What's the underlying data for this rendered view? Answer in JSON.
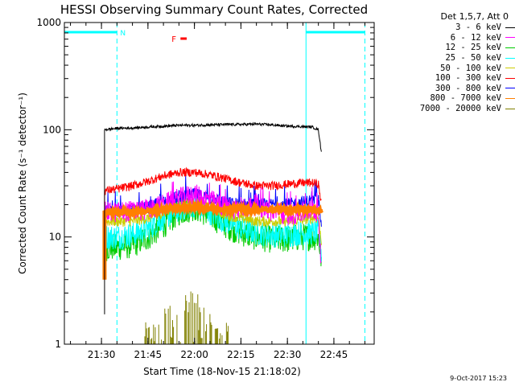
{
  "chart_data": {
    "type": "line",
    "title": "HESSI Observing Summary Count Rates, Corrected",
    "xlabel": "Start Time (18-Nov-15 21:18:02)",
    "ylabel": "Corrected Count Rate (s⁻¹ detector⁻¹)",
    "yscale": "log",
    "ylim": [
      1,
      1000
    ],
    "xlim": [
      "21:18:02",
      "22:58:00"
    ],
    "x_ticks": [
      "21:30",
      "21:45",
      "22:00",
      "22:15",
      "22:30",
      "22:45"
    ],
    "y_ticks": [
      "1",
      "10",
      "100",
      "1000"
    ],
    "legend_title": "Det 1,5,7, Att 0",
    "legend_position": "top-right",
    "data_start": "21:31:00",
    "data_end": "22:41:00",
    "series": [
      {
        "name": "3 - 6 keV",
        "color": "#000000",
        "x": [
          "21:31",
          "21:35",
          "21:40",
          "21:45",
          "21:50",
          "21:55",
          "22:00",
          "22:05",
          "22:10",
          "22:15",
          "22:20",
          "22:25",
          "22:30",
          "22:35",
          "22:38",
          "22:40",
          "22:41"
        ],
        "y": [
          100,
          103,
          104,
          106,
          108,
          110,
          110,
          111,
          112,
          112,
          113,
          111,
          108,
          107,
          106,
          100,
          60
        ]
      },
      {
        "name": "6 - 12 keV",
        "color": "#ff00ff",
        "x": [
          "21:31",
          "21:35",
          "21:40",
          "21:45",
          "21:50",
          "21:55",
          "22:00",
          "22:05",
          "22:10",
          "22:15",
          "22:20",
          "22:25",
          "22:30",
          "22:35",
          "22:38",
          "22:40",
          "22:41"
        ],
        "y": [
          17,
          17,
          17.5,
          18,
          20,
          23,
          25,
          22,
          19,
          18,
          20,
          17,
          16,
          17,
          18,
          17,
          5
        ]
      },
      {
        "name": "12 - 25 keV",
        "color": "#00cc00",
        "x": [
          "21:31",
          "21:35",
          "21:40",
          "21:45",
          "21:50",
          "21:55",
          "22:00",
          "22:05",
          "22:10",
          "22:15",
          "22:20",
          "22:25",
          "22:30",
          "22:35",
          "22:38",
          "22:40",
          "22:41"
        ],
        "y": [
          8,
          8,
          8.5,
          10,
          13,
          17,
          19,
          16,
          13,
          11,
          10,
          9.5,
          9.5,
          10,
          10,
          10,
          6
        ]
      },
      {
        "name": "25 - 50 keV",
        "color": "#00ffff",
        "x": [
          "21:31",
          "21:35",
          "21:40",
          "21:45",
          "21:50",
          "21:55",
          "22:00",
          "22:05",
          "22:10",
          "22:15",
          "22:20",
          "22:25",
          "22:30",
          "22:35",
          "22:38",
          "22:40",
          "22:41"
        ],
        "y": [
          10,
          10,
          10.5,
          12,
          15,
          18,
          20,
          17,
          14,
          12,
          11,
          10.5,
          10.5,
          11,
          11,
          11,
          7
        ]
      },
      {
        "name": "50 - 100 keV",
        "color": "#cccc00",
        "x": [
          "21:31",
          "21:35",
          "21:40",
          "21:45",
          "21:50",
          "21:55",
          "22:00",
          "22:05",
          "22:10",
          "22:15",
          "22:20",
          "22:25",
          "22:30",
          "22:35",
          "22:38",
          "22:40",
          "22:41"
        ],
        "y": [
          14,
          14,
          14,
          15,
          17,
          20,
          21,
          19,
          16,
          15,
          14,
          14,
          14,
          14.5,
          15,
          15,
          9
        ]
      },
      {
        "name": "100 - 300 keV",
        "color": "#ff0000",
        "x": [
          "21:31",
          "21:35",
          "21:40",
          "21:45",
          "21:50",
          "21:55",
          "22:00",
          "22:05",
          "22:10",
          "22:15",
          "22:20",
          "22:25",
          "22:30",
          "22:35",
          "22:38",
          "22:40",
          "22:41"
        ],
        "y": [
          27,
          28,
          30,
          33,
          37,
          40,
          40,
          38,
          35,
          32,
          30,
          30,
          31,
          32,
          32,
          31,
          20
        ]
      },
      {
        "name": "300 - 800 keV",
        "color": "#0000ff",
        "x": [
          "21:31",
          "21:35",
          "21:40",
          "21:45",
          "21:50",
          "21:55",
          "22:00",
          "22:05",
          "22:10",
          "22:15",
          "22:20",
          "22:25",
          "22:30",
          "22:35",
          "22:38",
          "22:40",
          "22:41"
        ],
        "y": [
          17,
          17.5,
          18,
          19,
          21,
          24,
          25,
          23,
          21,
          20,
          20,
          20,
          20,
          21,
          22,
          22,
          14
        ]
      },
      {
        "name": "800 - 7000 keV",
        "color": "#ff7f00",
        "x": [
          "21:31",
          "21:35",
          "21:40",
          "21:45",
          "21:50",
          "21:55",
          "22:00",
          "22:05",
          "22:10",
          "22:15",
          "22:20",
          "22:25",
          "22:30",
          "22:35",
          "22:38",
          "22:40",
          "22:41"
        ],
        "y": [
          17,
          17,
          17,
          17.5,
          18,
          19,
          19,
          18.5,
          18,
          18,
          18,
          18,
          18,
          18,
          18,
          18,
          17
        ]
      },
      {
        "name": "7000 - 20000 keV",
        "color": "#808000",
        "x": [
          "21:50",
          "21:55",
          "22:00",
          "22:05"
        ],
        "y": [
          2,
          3,
          3,
          2
        ]
      }
    ],
    "annotations": {
      "night_markers": [
        {
          "label": "N",
          "from": "21:18:02",
          "to": "21:35:00",
          "color": "#00ffff"
        },
        {
          "label": "",
          "from": "22:36:00",
          "to": "22:55:00",
          "color": "#00ffff"
        }
      ],
      "flare_marker": {
        "label": "F",
        "from": "21:55:30",
        "to": "21:57:30",
        "color": "#ff0000"
      }
    }
  },
  "footer": {
    "date": "9-Oct-2017 15:23"
  }
}
